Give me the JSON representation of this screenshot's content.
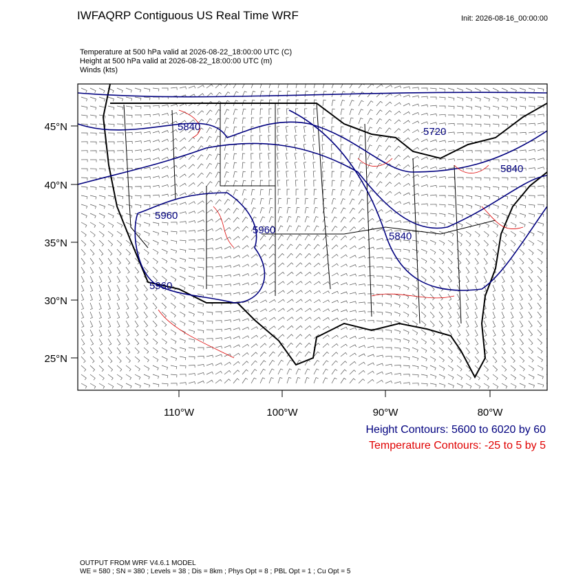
{
  "header": {
    "title": "IWFAQRP Contiguous US Real Time WRF",
    "init": "Init: 2026-08-16_00:00:00",
    "fields": [
      "Temperature at 500 hPa valid at 2026-08-22_18:00:00 UTC   (C)",
      "Height at 500 hPa valid at 2026-08-22_18:00:00 UTC   (m)",
      "Winds   (kts)"
    ]
  },
  "map": {
    "lat_labels": [
      "45°N",
      "40°N",
      "35°N",
      "30°N",
      "25°N"
    ],
    "lon_labels": [
      "110°W",
      "100°W",
      "90°W",
      "80°W"
    ],
    "contour_labels": [
      "5840",
      "5720",
      "5840",
      "5960",
      "5960",
      "5840",
      "5960"
    ]
  },
  "legend": {
    "height": "Height Contours: 5600 to 6020 by 60",
    "temperature": "Temperature Contours: -25 to 5 by 5"
  },
  "footer": {
    "model": "OUTPUT FROM WRF V4.6.1 MODEL",
    "settings": "WE = 580 ; SN = 380 ; Levels = 38 ; Dis = 8km ; Phys Opt = 8 ; PBL Opt = 1 ; Cu Opt = 5"
  }
}
